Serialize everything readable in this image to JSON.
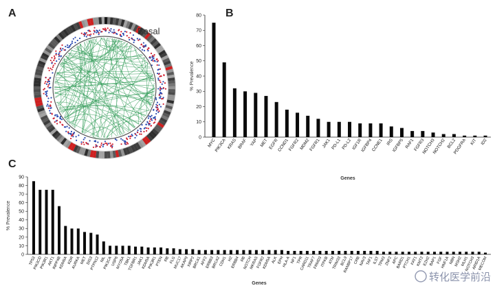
{
  "panels": {
    "a": "A",
    "b": "B",
    "c": "C"
  },
  "circos": {
    "label": "Basal"
  },
  "watermark": "转化医学前沿",
  "chart_data": [
    {
      "id": "B",
      "type": "bar",
      "title": "",
      "xlabel": "Genes",
      "ylabel": "% Prevalence",
      "ylim": [
        0,
        80
      ],
      "yticks": [
        0,
        10,
        20,
        30,
        40,
        50,
        60,
        70,
        80
      ],
      "categories": [
        "MYC",
        "PIK3CA",
        "KRAS",
        "BRAF",
        "YAP",
        "MET",
        "EGFR",
        "CCND1",
        "FGFR2",
        "MDM2",
        "FGFR1",
        "JAK1",
        "PD-L1",
        "PD-L2",
        "IGF1R",
        "IGFBP4",
        "CCNE1",
        "IRS",
        "IGFBP5",
        "RAF1",
        "FGFR3",
        "NOTCH3",
        "NOTCH2",
        "BCL2",
        "PDGFRA",
        "KIT",
        "ID2"
      ],
      "values": [
        75,
        49,
        32,
        30,
        29,
        27,
        23,
        18,
        16,
        14,
        12,
        10,
        10,
        10,
        9,
        9,
        9,
        7,
        6,
        4,
        4,
        3,
        2,
        2,
        1,
        1,
        1
      ]
    },
    {
      "id": "C",
      "type": "bar",
      "title": "",
      "xlabel": "Genes",
      "ylabel": "% Prevalence",
      "ylim": [
        0,
        90
      ],
      "yticks": [
        0,
        10,
        20,
        30,
        40,
        50,
        60,
        70,
        80,
        90
      ],
      "categories": [
        "TP53",
        "PIK3CD",
        "PIK3R1",
        "AKT1",
        "INPP4B",
        "KDM6A",
        "KDR",
        "AURKA",
        "MET",
        "DIS3",
        "PTPN12",
        "NIL",
        "PIK3CA",
        "USP6",
        "MYO5A",
        "TBK1",
        "TGFBR1",
        "JAK1",
        "KDM5A",
        "PIK3R1",
        "PTEN",
        "RB",
        "FLG",
        "MUC17",
        "AKAP9",
        "XIRP2",
        "BRCA1",
        "AFF2",
        "ERBB3",
        "BRCA2",
        "CDH1",
        "H2",
        "ERBB4",
        "RB",
        "NOTCH",
        "MKRAS",
        "FGFR2",
        "KDM5A",
        "ALK",
        "EPH",
        "HLA-A",
        "NF1",
        "TPR",
        "CARD11",
        "TRAF7",
        "FRMD3",
        "ITPKB",
        "ATM",
        "TRIM33",
        "BCL9",
        "RANBP17",
        "CRB",
        "NAV3",
        "TAF1",
        "ILST",
        "TPM3",
        "ZNF2",
        "APC",
        "BARD1",
        "PTCH1",
        "FAT1",
        "KMT2",
        "EZH2",
        "BAP1",
        "FGF",
        "HNF1A",
        "NBN",
        "MSH2",
        "MLH1",
        "NOTCH3",
        "ARID1A",
        "MECOM"
      ],
      "values": [
        85,
        75,
        75,
        75,
        56,
        33,
        30,
        30,
        26,
        25,
        23,
        15,
        10,
        10,
        10,
        10,
        9,
        9,
        8,
        8,
        8,
        7,
        7,
        6,
        6,
        6,
        5,
        5,
        5,
        5,
        5,
        5,
        5,
        5,
        5,
        5,
        5,
        5,
        5,
        5,
        4,
        4,
        4,
        4,
        4,
        4,
        4,
        4,
        4,
        4,
        4,
        4,
        4,
        4,
        4,
        3,
        3,
        3,
        3,
        3,
        3,
        3,
        3,
        3,
        3,
        3,
        3,
        3,
        3,
        3,
        3,
        2
      ]
    }
  ]
}
